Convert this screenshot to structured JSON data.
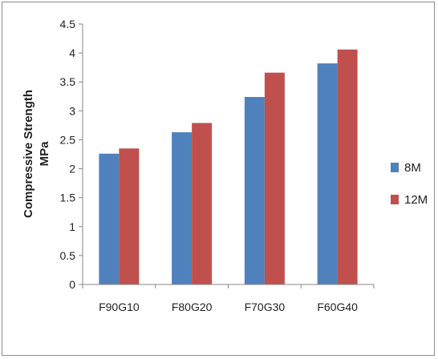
{
  "chart_data": {
    "type": "bar",
    "title": "",
    "xlabel": "",
    "ylabel": [
      "Compressive Strength",
      "MPa"
    ],
    "categories": [
      "F90G10",
      "F80G20",
      "F70G30",
      "F60G40"
    ],
    "series": [
      {
        "name": "8M",
        "values": [
          2.26,
          2.63,
          3.24,
          3.82
        ],
        "color": "#4F81BD"
      },
      {
        "name": "12M",
        "values": [
          2.35,
          2.79,
          3.66,
          4.06
        ],
        "color": "#C0504D"
      }
    ],
    "ylim": [
      0,
      4.5
    ],
    "yticks": [
      "0",
      "0.5",
      "1",
      "1.5",
      "2",
      "2.5",
      "3",
      "3.5",
      "4",
      "4.5"
    ],
    "grid": false,
    "legend": "right"
  }
}
